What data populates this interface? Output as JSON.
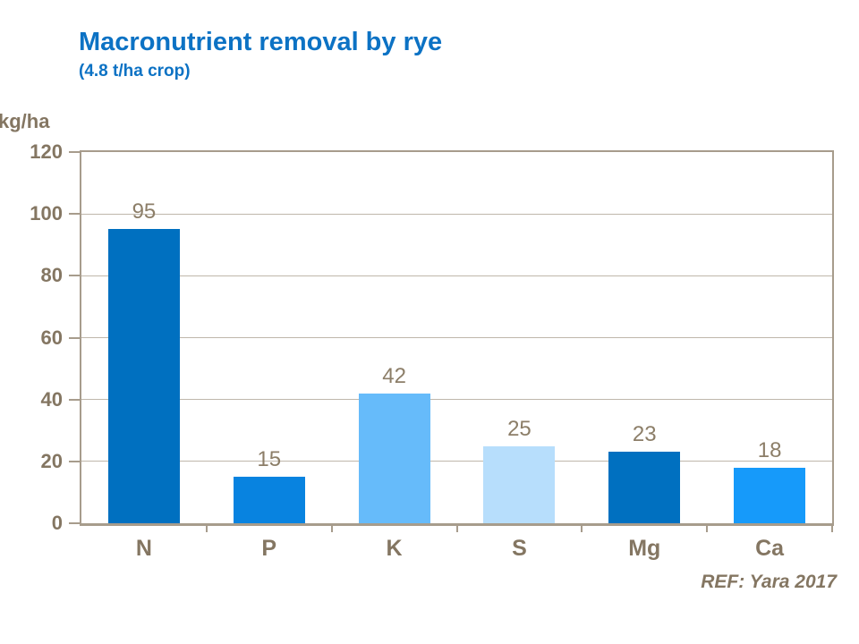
{
  "header": {
    "title": "Macronutrient removal by rye",
    "subtitle": "(4.8 t/ha crop)"
  },
  "axis_unit_label": "kg/ha",
  "reference": "REF: Yara 2017",
  "colors": {
    "title_blue": "#0C72C4",
    "axis_text": "#847662",
    "data_label_text": "#8C7E68",
    "axis_line": "#A79C8C",
    "gridline": "#BFB7AB"
  },
  "chart_data": {
    "type": "bar",
    "title": "Macronutrient removal by rye",
    "subtitle": "(4.8 t/ha crop)",
    "ylabel": "kg/ha",
    "categories": [
      "N",
      "P",
      "K",
      "S",
      "Mg",
      "Ca"
    ],
    "values": [
      95,
      15,
      42,
      25,
      23,
      18
    ],
    "bar_colors": [
      "#0070C0",
      "#0883E0",
      "#66BBFA",
      "#B7DEFC",
      "#0070C0",
      "#169AFA"
    ],
    "ylim": [
      0,
      120
    ],
    "ytick_step": 20,
    "grid": true,
    "legend": false,
    "annotation": "REF: Yara 2017"
  }
}
